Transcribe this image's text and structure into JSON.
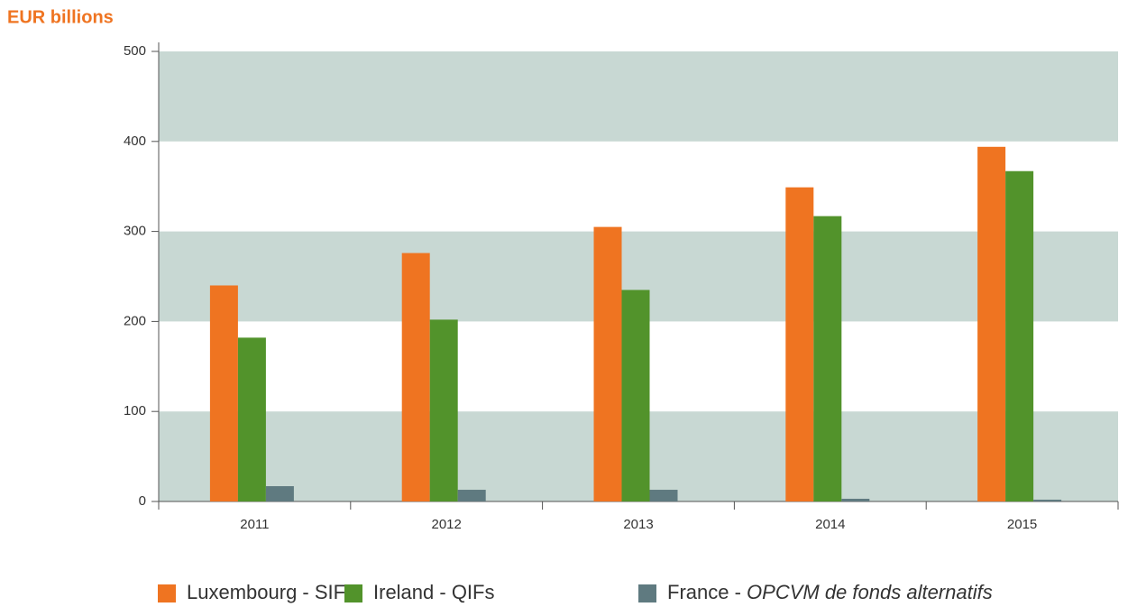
{
  "chart_data": {
    "type": "bar",
    "title": "EUR billions",
    "categories": [
      "2011",
      "2012",
      "2013",
      "2014",
      "2015"
    ],
    "series": [
      {
        "name": "Luxembourg - SIFs",
        "color": "#ef7421",
        "values": [
          240,
          276,
          305,
          349,
          394
        ]
      },
      {
        "name": "Ireland - QIFs",
        "color": "#52932b",
        "values": [
          182,
          202,
          235,
          317,
          367
        ]
      },
      {
        "name": "France - OPCVM de fonds alternatifs",
        "color": "#5f7a80",
        "values": [
          17,
          13,
          13,
          3,
          2
        ]
      }
    ],
    "ylim": [
      0,
      500
    ],
    "yticks": [
      0,
      100,
      200,
      300,
      400,
      500
    ],
    "grid": true,
    "band_color": "#c8d8d3"
  }
}
